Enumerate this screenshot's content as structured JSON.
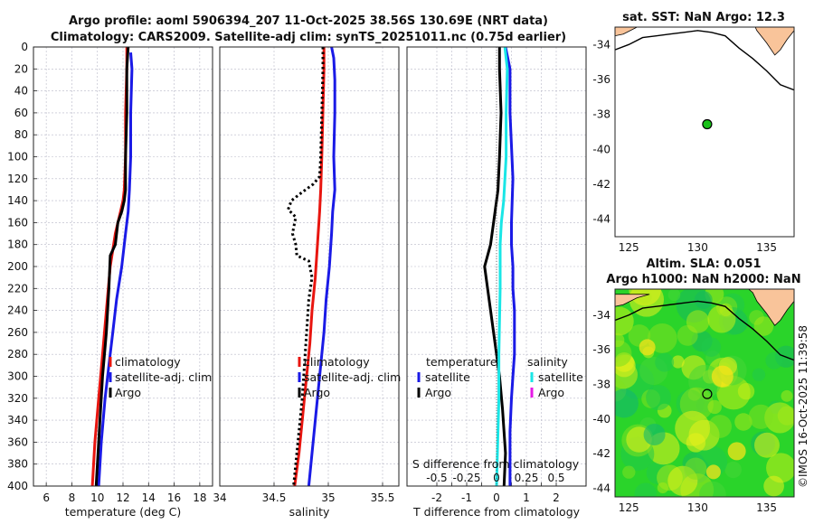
{
  "header": {
    "title_line1": "Argo profile: aoml 5906394_207 11-Oct-2025 38.56S 130.69E (NRT data)",
    "title_line2": "Climatology: CARS2009. Satellite-adj clim: synTS_20251011.nc (0.75d earlier)"
  },
  "colors": {
    "climatology": "#e8150f",
    "satellite_adj": "#1a1ae6",
    "argo": "#000000",
    "satellite_salinity": "#19e6e6",
    "argo_salinity": "#e619e6",
    "land": "#f9c49a",
    "marker": "#19c219"
  },
  "watermark": "©IMOS 16-Oct-2025 11:39:58",
  "chart_data": [
    {
      "id": "temperature",
      "type": "line",
      "xlabel": "temperature (deg C)",
      "xlim": [
        5,
        19
      ],
      "xticks": [
        6,
        8,
        10,
        12,
        14,
        16,
        18
      ],
      "ylim": [
        400,
        0
      ],
      "yticks": [
        0,
        20,
        40,
        60,
        80,
        100,
        120,
        140,
        160,
        180,
        200,
        220,
        240,
        260,
        280,
        300,
        320,
        340,
        360,
        380,
        400
      ],
      "legend": {
        "placement": "lower-right",
        "entries": [
          "climatology",
          "satellite-adj. clim",
          "Argo"
        ]
      },
      "series": [
        {
          "name": "climatology",
          "style": "solid",
          "color_key": "climatology",
          "x": [
            12.3,
            12.3,
            12.2,
            12.2,
            12.1,
            12.0,
            11.8,
            11.4,
            11.0,
            10.7,
            10.4,
            10.1,
            9.8,
            9.6
          ],
          "y": [
            0,
            20,
            60,
            100,
            130,
            140,
            150,
            170,
            200,
            240,
            280,
            320,
            360,
            400
          ]
        },
        {
          "name": "satellite-adj. clim",
          "style": "solid",
          "color_key": "satellite_adj",
          "x": [
            12.6,
            12.7,
            12.6,
            12.6,
            12.5,
            12.4,
            12.2,
            11.9,
            11.5,
            11.2,
            10.9,
            10.6,
            10.3,
            10.1
          ],
          "y": [
            5,
            20,
            60,
            100,
            130,
            150,
            170,
            200,
            230,
            260,
            290,
            320,
            360,
            400
          ]
        },
        {
          "name": "Argo",
          "style": "solid",
          "color_key": "argo",
          "x": [
            12.4,
            12.3,
            12.3,
            12.2,
            12.2,
            12.1,
            11.9,
            11.6,
            11.4,
            11.0,
            10.9,
            10.7,
            10.4,
            10.2,
            10.0,
            9.9
          ],
          "y": [
            0,
            20,
            60,
            100,
            130,
            140,
            150,
            160,
            180,
            190,
            220,
            260,
            300,
            340,
            380,
            400
          ]
        }
      ]
    },
    {
      "id": "salinity",
      "type": "line",
      "xlabel": "salinity",
      "xlim": [
        34,
        35.65
      ],
      "xticks": [
        34,
        34.5,
        35,
        35.5
      ],
      "ylim": [
        400,
        0
      ],
      "legend": {
        "placement": "lower-right",
        "entries": [
          "climatology",
          "satellite-adj. clim",
          "Argo"
        ]
      },
      "series": [
        {
          "name": "climatology",
          "style": "solid",
          "color_key": "climatology",
          "x": [
            34.96,
            34.96,
            34.95,
            34.94,
            34.93,
            34.92,
            34.9,
            34.88,
            34.85,
            34.83,
            34.8,
            34.77,
            34.73,
            34.69
          ],
          "y": [
            0,
            20,
            60,
            100,
            130,
            150,
            180,
            210,
            240,
            270,
            300,
            330,
            370,
            400
          ]
        },
        {
          "name": "satellite-adj. clim",
          "style": "solid",
          "color_key": "satellite_adj",
          "x": [
            35.03,
            35.05,
            35.06,
            35.06,
            35.05,
            35.06,
            35.04,
            35.03,
            35.01,
            34.98,
            34.96,
            34.93,
            34.9,
            34.87,
            34.84,
            34.82
          ],
          "y": [
            0,
            10,
            30,
            60,
            100,
            130,
            150,
            170,
            200,
            230,
            260,
            290,
            320,
            350,
            380,
            400
          ]
        },
        {
          "name": "Argo",
          "style": "dotted",
          "color_key": "argo",
          "x": [
            34.95,
            34.95,
            34.94,
            34.93,
            34.92,
            34.86,
            34.75,
            34.66,
            34.63,
            34.7,
            34.67,
            34.7,
            34.71,
            34.82,
            34.85,
            34.82,
            34.8,
            34.78,
            34.76,
            34.73,
            34.7,
            34.68
          ],
          "y": [
            0,
            20,
            60,
            100,
            118,
            125,
            133,
            140,
            148,
            155,
            170,
            180,
            190,
            195,
            210,
            230,
            260,
            290,
            320,
            350,
            380,
            400
          ]
        }
      ]
    },
    {
      "id": "difference",
      "type": "line",
      "xlabel": "T difference from climatology",
      "xlabel_top": "S difference from climatology",
      "xlim": [
        -3,
        3
      ],
      "xticks": [
        -2,
        -1.5,
        -1,
        -0.5,
        0,
        0.5,
        1,
        1.5,
        2
      ],
      "xtick_labels": [
        "-2",
        "",
        "-1",
        "",
        "0",
        "",
        "1",
        "",
        "2"
      ],
      "xlim_salinity": [
        -0.75,
        0.75
      ],
      "xticks_salinity": [
        -0.5,
        -0.25,
        0,
        0.25,
        0.5
      ],
      "xtick_labels_salinity": [
        "-0.5",
        "-0.25",
        "0",
        "0.25",
        "0.5"
      ],
      "ylim": [
        400,
        0
      ],
      "legend": {
        "placement": "middle",
        "left_header": "temperature",
        "left_entries": [
          "satellite",
          "Argo"
        ],
        "right_header": "salinity",
        "right_entries": [
          "satellite",
          "Argo"
        ]
      },
      "series": [
        {
          "name": "T satellite",
          "style": "solid",
          "color_key": "satellite_adj",
          "x": [
            0.3,
            0.45,
            0.45,
            0.55,
            0.5,
            0.5,
            0.55,
            0.55,
            0.6,
            0.6,
            0.55,
            0.5,
            0.45,
            0.45,
            0.45
          ],
          "y": [
            0,
            20,
            60,
            120,
            160,
            180,
            200,
            220,
            240,
            280,
            300,
            320,
            350,
            380,
            400
          ]
        },
        {
          "name": "T Argo",
          "style": "solid",
          "color_key": "argo",
          "x": [
            0.1,
            0.1,
            0.15,
            0.1,
            0.05,
            0.0,
            -0.1,
            -0.2,
            -0.3,
            -0.4,
            -0.3,
            -0.2,
            -0.1,
            0.0,
            0.1,
            0.2,
            0.3,
            0.25
          ],
          "y": [
            0,
            20,
            60,
            100,
            130,
            140,
            160,
            180,
            190,
            200,
            220,
            240,
            260,
            280,
            300,
            330,
            370,
            400
          ]
        },
        {
          "name": "S satellite",
          "style": "solid",
          "color_key": "satellite_salinity",
          "axis": "salinity",
          "x": [
            0.07,
            0.09,
            0.08,
            0.08,
            0.06,
            0.04,
            0.03,
            0.03,
            0.02,
            0.02,
            0.01,
            0.0
          ],
          "y": [
            0,
            20,
            60,
            100,
            140,
            160,
            180,
            220,
            280,
            320,
            360,
            400
          ]
        }
      ]
    },
    {
      "id": "sst-map",
      "type": "scatter",
      "title": "sat. SST: NaN Argo: 12.3",
      "xlim": [
        124,
        137
      ],
      "ylim": [
        -45,
        -33
      ],
      "xticks": [
        125,
        130,
        135
      ],
      "yticks": [
        -34,
        -36,
        -38,
        -40,
        -42,
        -44
      ],
      "point": {
        "lon": 130.69,
        "lat": -38.56
      }
    },
    {
      "id": "sla-map",
      "type": "heatmap",
      "title_line1": "Altim. SLA: 0.051",
      "title_line2": "Argo h1000: NaN h2000: NaN",
      "xlim": [
        124,
        137
      ],
      "ylim": [
        -44.5,
        -32.5
      ],
      "xticks": [
        125,
        130,
        135
      ],
      "yticks": [
        -34,
        -36,
        -38,
        -40,
        -42,
        -44
      ],
      "point": {
        "lon": 130.69,
        "lat": -38.56
      }
    }
  ]
}
